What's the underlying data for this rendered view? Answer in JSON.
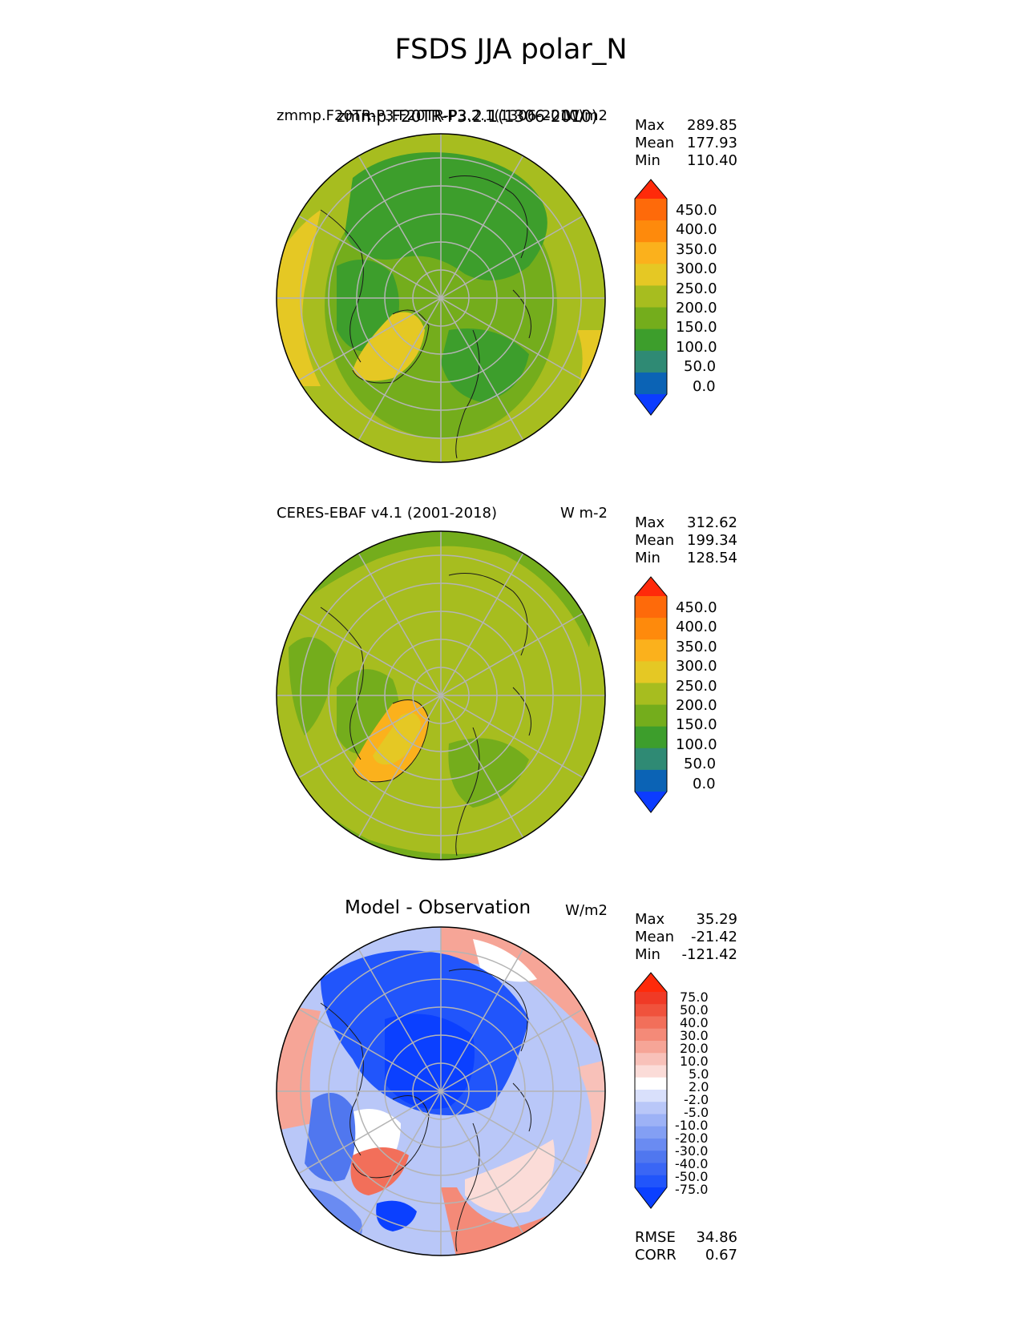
{
  "figure": {
    "title": "FSDS JJA polar_N"
  },
  "panels": [
    {
      "id": "test",
      "title_left": "zmmp.F20TR-P3.F20TR-P3.2.1(1306-2010)",
      "title_overlap": "zmmp.F20TR-P3.2.1(1306-2010)",
      "units": "W/m2",
      "stats": {
        "max_label": "Max",
        "max": "289.85",
        "mean_label": "Mean",
        "mean": "177.93",
        "min_label": "Min",
        "min": "110.40"
      },
      "colorbar": {
        "labels": [
          "450.0",
          "400.0",
          "350.0",
          "300.0",
          "250.0",
          "200.0",
          "150.0",
          "100.0",
          "50.0",
          "0.0"
        ],
        "colors": [
          "#0c3cff",
          "#0b63b5",
          "#2f8a74",
          "#3d9e2c",
          "#74ad1c",
          "#a7bd1f",
          "#e5c824",
          "#fbb11c",
          "#fe8a0c",
          "#fe6a0a",
          "#ff2a0a"
        ]
      }
    },
    {
      "id": "ref",
      "title_left": "CERES-EBAF v4.1 (2001-2018)",
      "units": "W m-2",
      "stats": {
        "max_label": "Max",
        "max": "312.62",
        "mean_label": "Mean",
        "mean": "199.34",
        "min_label": "Min",
        "min": "128.54"
      },
      "colorbar": {
        "labels": [
          "450.0",
          "400.0",
          "350.0",
          "300.0",
          "250.0",
          "200.0",
          "150.0",
          "100.0",
          "50.0",
          "0.0"
        ],
        "colors": [
          "#0c3cff",
          "#0b63b5",
          "#2f8a74",
          "#3d9e2c",
          "#74ad1c",
          "#a7bd1f",
          "#e5c824",
          "#fbb11c",
          "#fe8a0c",
          "#fe6a0a",
          "#ff2a0a"
        ]
      }
    },
    {
      "id": "diff",
      "title_center": "Model - Observation",
      "units": "W/m2",
      "stats": {
        "max_label": "Max",
        "max": "35.29",
        "mean_label": "Mean",
        "mean": "-21.42",
        "min_label": "Min",
        "min": "-121.42"
      },
      "colorbar": {
        "labels": [
          "75.0",
          "50.0",
          "40.0",
          "30.0",
          "20.0",
          "10.0",
          "5.0",
          "2.0",
          "-2.0",
          "-5.0",
          "-10.0",
          "-20.0",
          "-30.0",
          "-40.0",
          "-50.0",
          "-75.0"
        ],
        "colors": [
          "#0b40ff",
          "#2155fb",
          "#3a66f5",
          "#5077ef",
          "#6a8bf2",
          "#839ff4",
          "#9db2f6",
          "#b9c7f8",
          "#d9e0fb",
          "#ffffff",
          "#fbdcd8",
          "#f8c1b9",
          "#f6a597",
          "#f48a78",
          "#f26f5a",
          "#f0523c",
          "#f03a26",
          "#ff2a0a"
        ]
      },
      "metrics": {
        "rmse_label": "RMSE",
        "rmse": "34.86",
        "corr_label": "CORR",
        "corr": "0.67"
      }
    }
  ]
}
